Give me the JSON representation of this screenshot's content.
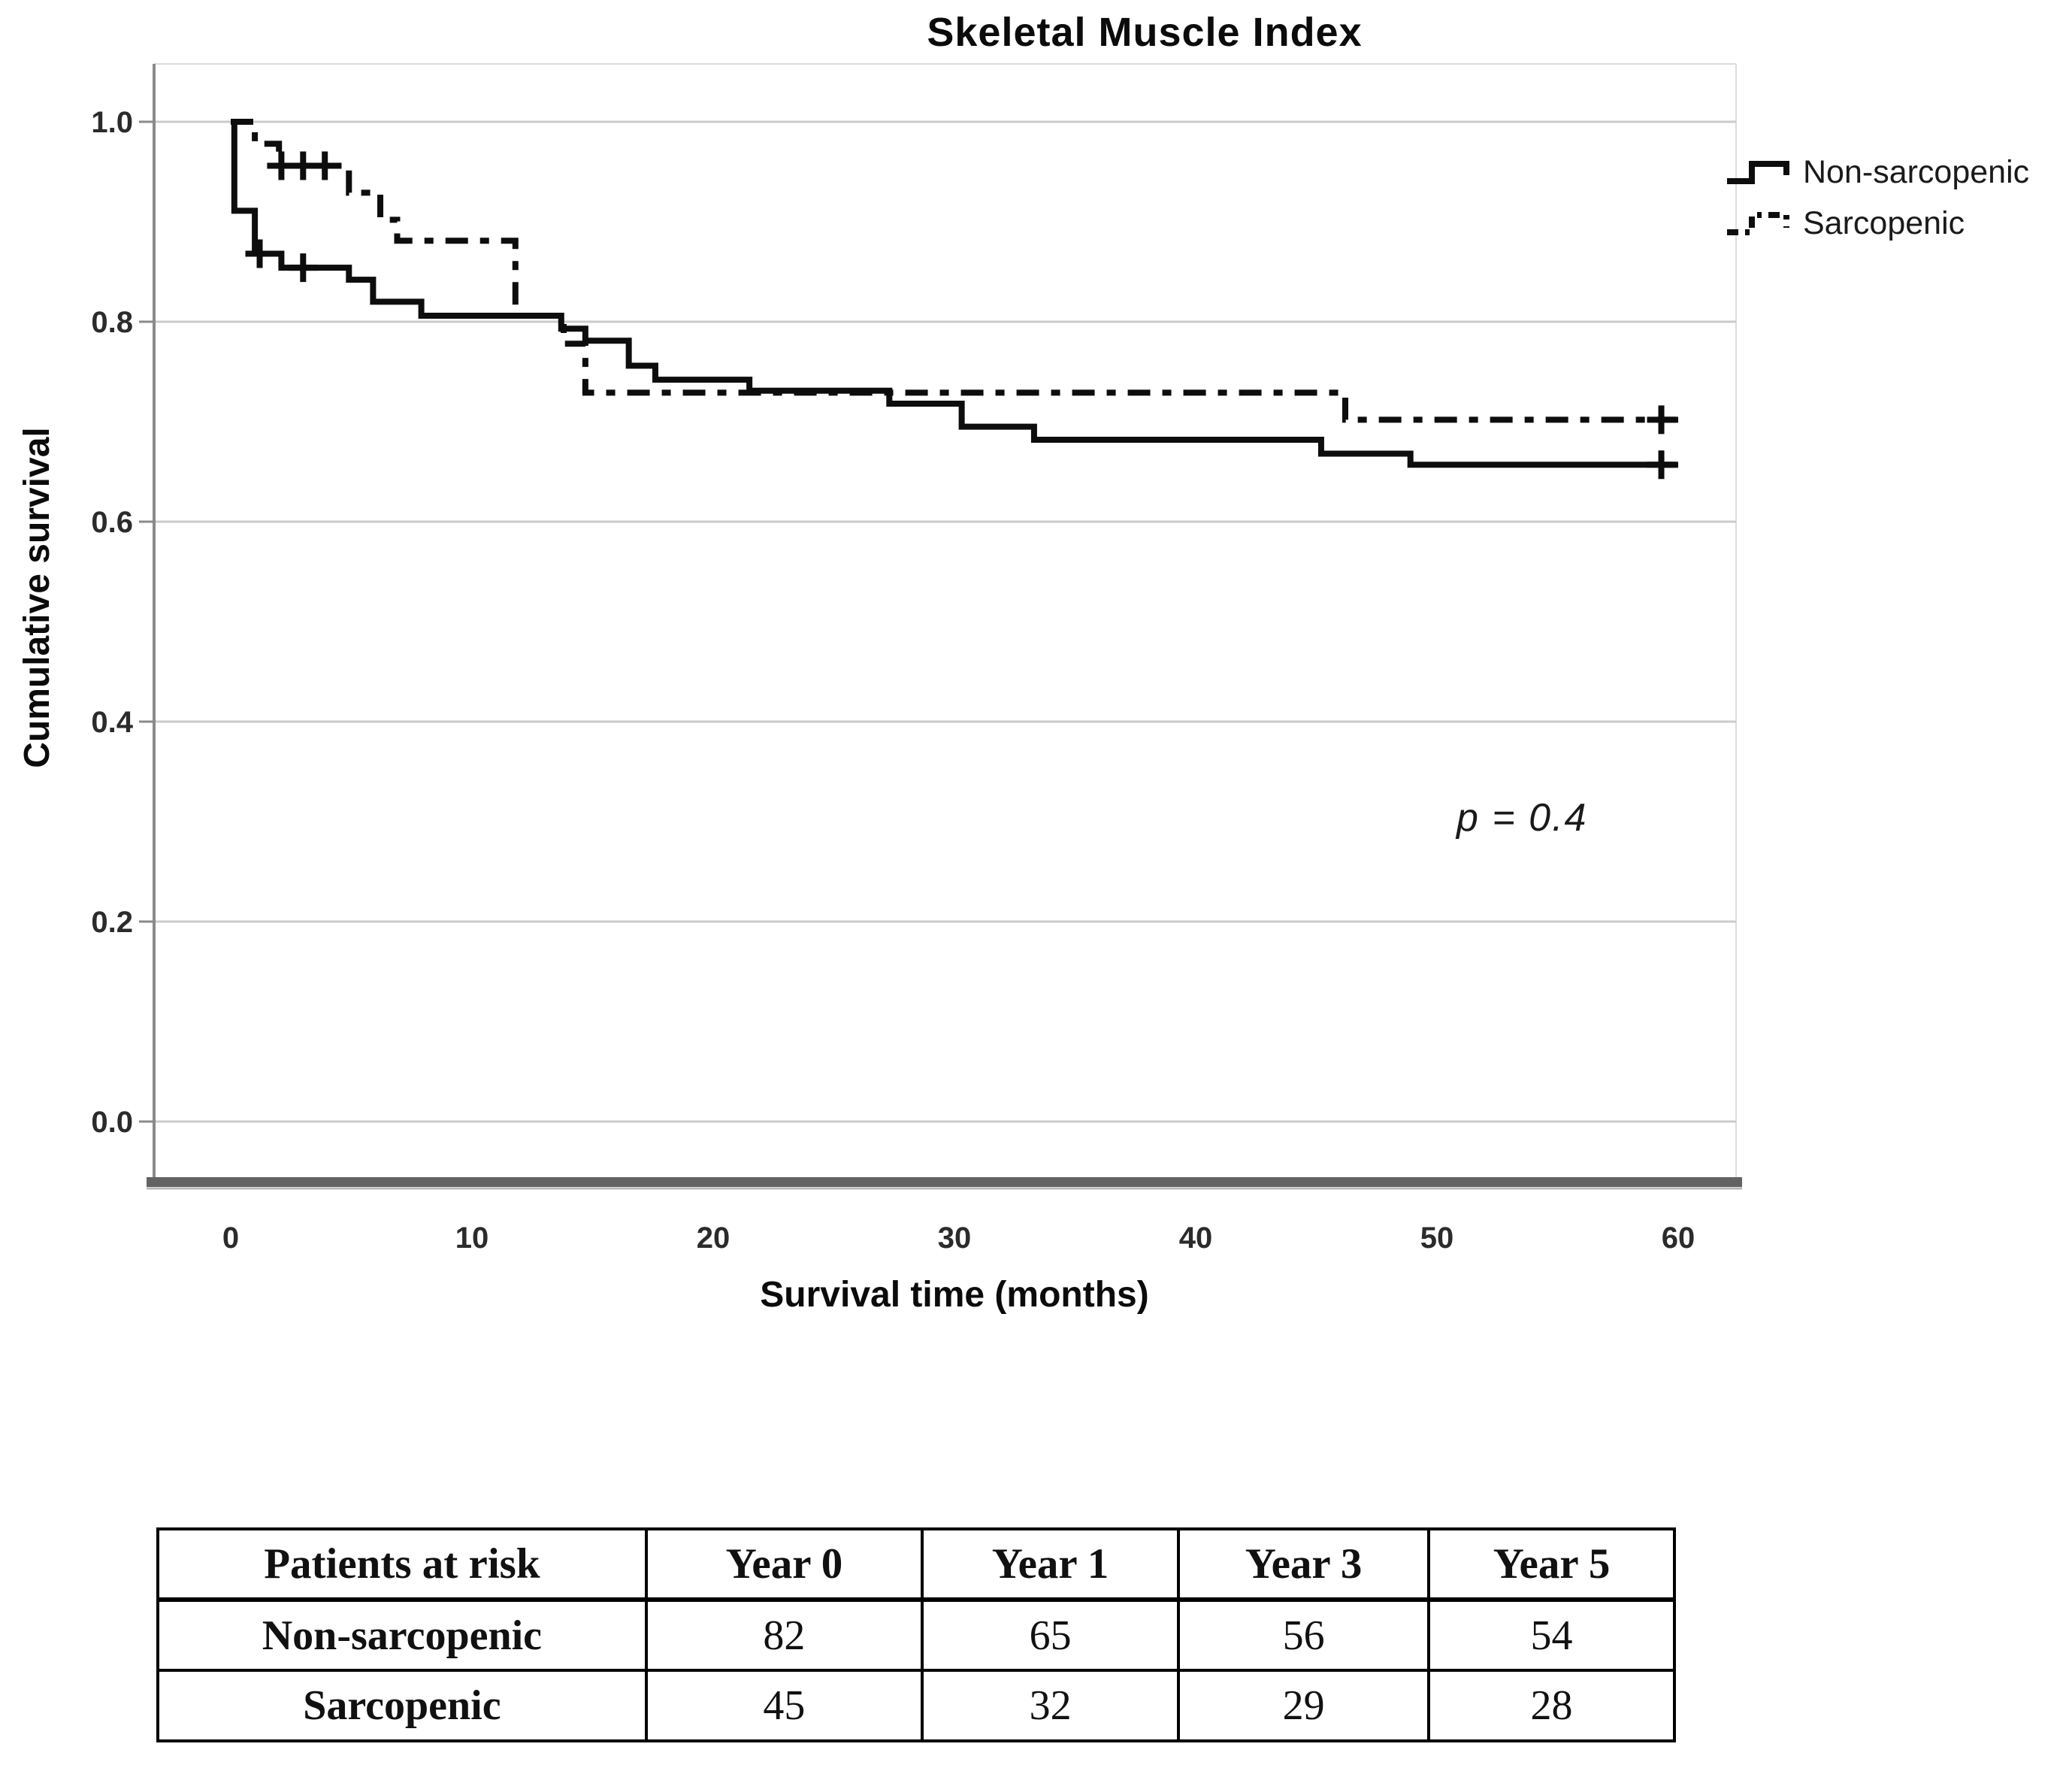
{
  "title": "Skeletal Muscle Index",
  "y_axis": {
    "title": "Cumulative survival"
  },
  "x_axis": {
    "title": "Survival time (months)"
  },
  "annotation": {
    "p_value": "p = 0.4"
  },
  "chart_data": {
    "type": "line",
    "subtype": "kaplan-meier-step",
    "title": "Skeletal Muscle Index",
    "xlabel": "Survival time (months)",
    "ylabel": "Cumulative survival",
    "xlim": [
      0,
      60
    ],
    "ylim": [
      0.0,
      1.0
    ],
    "x_ticks": [
      0,
      10,
      20,
      30,
      40,
      50,
      60
    ],
    "y_ticks": [
      0.0,
      0.2,
      0.4,
      0.6,
      0.8,
      1.0
    ],
    "grid": "horizontal",
    "legend_position": "top-right",
    "line_color": "#0d0d0d",
    "grid_color": "#cbcbcb",
    "axis_color": "#8a8a8a",
    "series": [
      {
        "name": "Non-sarcopenic",
        "line": "solid",
        "points": [
          [
            0,
            1.0
          ],
          [
            0.15,
            0.911
          ],
          [
            1.0,
            0.868
          ],
          [
            2.1,
            0.854
          ],
          [
            4.9,
            0.842
          ],
          [
            5.9,
            0.82
          ],
          [
            7.9,
            0.806
          ],
          [
            13.7,
            0.793
          ],
          [
            14.7,
            0.781
          ],
          [
            16.5,
            0.756
          ],
          [
            17.6,
            0.742
          ],
          [
            21.5,
            0.731
          ],
          [
            27.3,
            0.718
          ],
          [
            30.3,
            0.695
          ],
          [
            33.3,
            0.682
          ],
          [
            45.2,
            0.668
          ],
          [
            48.9,
            0.657
          ],
          [
            60,
            0.657
          ]
        ],
        "censors": [
          [
            1.2,
            0.868
          ],
          [
            3.0,
            0.854
          ],
          [
            59.3,
            0.657
          ]
        ]
      },
      {
        "name": "Sarcopenic",
        "line": "dash-dot",
        "points": [
          [
            0,
            1.0
          ],
          [
            1.0,
            0.978
          ],
          [
            2.0,
            0.956
          ],
          [
            4.9,
            0.929
          ],
          [
            6.2,
            0.902
          ],
          [
            6.9,
            0.881
          ],
          [
            11.8,
            0.806
          ],
          [
            13.8,
            0.778
          ],
          [
            14.7,
            0.729
          ],
          [
            46.2,
            0.702
          ],
          [
            60,
            0.702
          ]
        ],
        "censors": [
          [
            2.1,
            0.956
          ],
          [
            3.0,
            0.956
          ],
          [
            3.9,
            0.956
          ],
          [
            59.3,
            0.702
          ]
        ]
      }
    ],
    "annotations": [
      {
        "text": "p = 0.4",
        "x": 54,
        "y": 0.3
      }
    ]
  },
  "risk_table": {
    "header": [
      "Patients at risk",
      "Year 0",
      "Year 1",
      "Year 3",
      "Year 5"
    ],
    "rows": [
      {
        "label": "Non-sarcopenic",
        "values": [
          "82",
          "65",
          "56",
          "54"
        ]
      },
      {
        "label": "Sarcopenic",
        "values": [
          "45",
          "32",
          "29",
          "28"
        ]
      }
    ]
  }
}
